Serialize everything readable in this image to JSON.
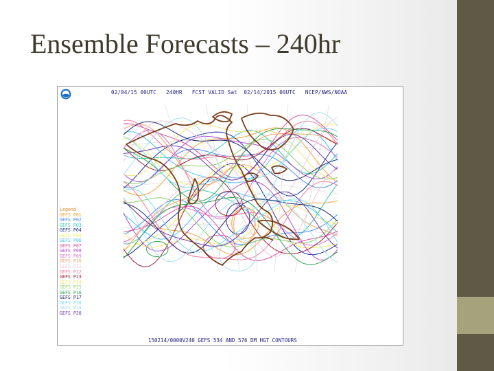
{
  "slide": {
    "title": "Ensemble Forecasts – 240hr"
  },
  "map": {
    "header": "02/04/15 00UTC   240HR   FCST VALID Sat  02/14/2015 00UTC   NCEP/NWS/NOAA",
    "footer": "150214/0000V240 GEFS 534 AND 576 DM HGT CONTOURS",
    "logo": "noaa-logo",
    "legend_title": "Legend",
    "legend": [
      {
        "label": "GEFS P01",
        "color": "#f2a33a"
      },
      {
        "label": "GEFS P02",
        "color": "#4b8cf0"
      },
      {
        "label": "GEFS P03",
        "color": "#36c6b4"
      },
      {
        "label": "GEFS P04",
        "color": "#1c2f9c"
      },
      {
        "label": "GEFS P05",
        "color": "#f0f06a"
      },
      {
        "label": "GEFS P06",
        "color": "#47c4f0"
      },
      {
        "label": "GEFS P07",
        "color": "#d84f9c"
      },
      {
        "label": "GEFS P08",
        "color": "#b04cd8"
      },
      {
        "label": "GEFS P09",
        "color": "#e070c8"
      },
      {
        "label": "GEFS P10",
        "color": "#f0a36a"
      },
      {
        "label": "GEFS P11",
        "color": "#f3c9d8"
      },
      {
        "label": "GEFS P12",
        "color": "#f07a9e"
      },
      {
        "label": "GEFS P13",
        "color": "#a0233b"
      },
      {
        "label": "GEFS P14",
        "color": "#f4e47a"
      },
      {
        "label": "GEFS P15",
        "color": "#8bd36a"
      },
      {
        "label": "GEFS P16",
        "color": "#2ea34e"
      },
      {
        "label": "GEFS P17",
        "color": "#1e2a6a"
      },
      {
        "label": "GEFS P18",
        "color": "#7ad9f0"
      },
      {
        "label": "GEFS P19",
        "color": "#a6e0f5"
      },
      {
        "label": "GEFS P20",
        "color": "#6a3ca8"
      }
    ]
  }
}
